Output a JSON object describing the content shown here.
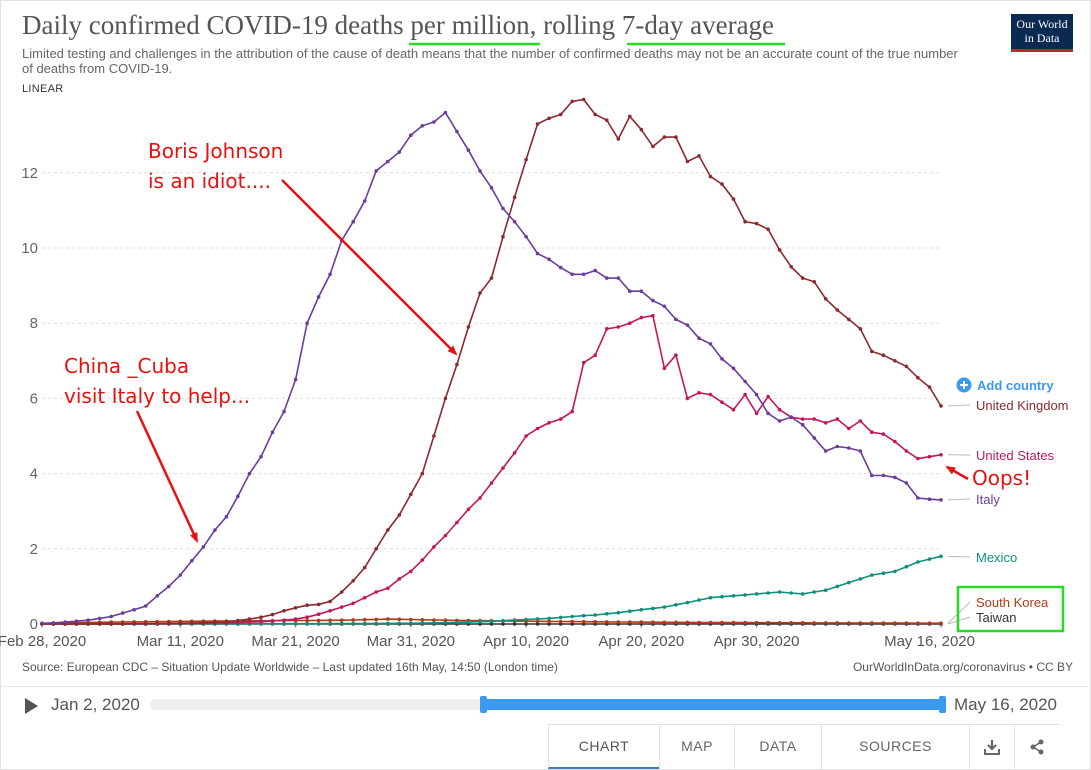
{
  "header": {
    "title": "Daily confirmed COVID-19 deaths per million, rolling 7-day average",
    "subtitle": "Limited testing and challenges in the attribution of the cause of death means that the number of confirmed deaths may not be an accurate count of the true number of deaths from COVID-19.",
    "scale_label": "LINEAR",
    "logo_line1": "Our World",
    "logo_line2": "in Data"
  },
  "add_country_label": "Add country",
  "annotations": {
    "boris": [
      "Boris Johnson",
      "is an idiot...."
    ],
    "china": [
      "China _Cuba",
      "visit Italy to help..."
    ],
    "oops": "Oops!"
  },
  "colors": {
    "United Kingdom": "#8a2a2f",
    "United States": "#c2185b",
    "Italy": "#6a3d9a",
    "Mexico": "#0f8f7e",
    "South Korea": "#b23a16",
    "Taiwan": "#333333",
    "annotation": "#e8110f",
    "highlight_underline": "#22dd22",
    "highlight_box": "#22dd22",
    "accent": "#3b9af0"
  },
  "chart_data": {
    "type": "line",
    "title": "Daily confirmed COVID-19 deaths per million, rolling 7-day average",
    "xlabel": "",
    "ylabel": "",
    "x_start": "2020-02-28",
    "x_end": "2020-05-16",
    "x_ticks": [
      "Feb 28, 2020",
      "Mar 11, 2020",
      "Mar 21, 2020",
      "Mar 31, 2020",
      "Apr 10, 2020",
      "Apr 20, 2020",
      "Apr 30, 2020",
      "May 16, 2020"
    ],
    "x_tick_dates": [
      "2020-02-28",
      "2020-03-11",
      "2020-03-21",
      "2020-03-31",
      "2020-04-10",
      "2020-04-20",
      "2020-04-30",
      "2020-05-16"
    ],
    "ylim": [
      0,
      14
    ],
    "y_ticks": [
      0,
      2,
      4,
      6,
      8,
      10,
      12
    ],
    "grid": true,
    "series": [
      {
        "name": "Italy",
        "values": [
          [
            "2020-02-28",
            0.01
          ],
          [
            "2020-03-01",
            0.05
          ],
          [
            "2020-03-03",
            0.1
          ],
          [
            "2020-03-05",
            0.2
          ],
          [
            "2020-03-07",
            0.38
          ],
          [
            "2020-03-08",
            0.48
          ],
          [
            "2020-03-09",
            0.75
          ],
          [
            "2020-03-10",
            1.0
          ],
          [
            "2020-03-11",
            1.3
          ],
          [
            "2020-03-12",
            1.68
          ],
          [
            "2020-03-13",
            2.05
          ],
          [
            "2020-03-14",
            2.5
          ],
          [
            "2020-03-15",
            2.85
          ],
          [
            "2020-03-16",
            3.4
          ],
          [
            "2020-03-17",
            4.0
          ],
          [
            "2020-03-18",
            4.45
          ],
          [
            "2020-03-19",
            5.1
          ],
          [
            "2020-03-20",
            5.65
          ],
          [
            "2020-03-21",
            6.5
          ],
          [
            "2020-03-22",
            8.0
          ],
          [
            "2020-03-23",
            8.7
          ],
          [
            "2020-03-24",
            9.3
          ],
          [
            "2020-03-25",
            10.2
          ],
          [
            "2020-03-26",
            10.7
          ],
          [
            "2020-03-27",
            11.25
          ],
          [
            "2020-03-28",
            12.05
          ],
          [
            "2020-03-29",
            12.3
          ],
          [
            "2020-03-30",
            12.55
          ],
          [
            "2020-03-31",
            13.0
          ],
          [
            "2020-04-01",
            13.25
          ],
          [
            "2020-04-02",
            13.35
          ],
          [
            "2020-04-03",
            13.6
          ],
          [
            "2020-04-04",
            13.1
          ],
          [
            "2020-04-05",
            12.6
          ],
          [
            "2020-04-06",
            12.05
          ],
          [
            "2020-04-07",
            11.6
          ],
          [
            "2020-04-08",
            11.05
          ],
          [
            "2020-04-09",
            10.7
          ],
          [
            "2020-04-10",
            10.3
          ],
          [
            "2020-04-11",
            9.85
          ],
          [
            "2020-04-12",
            9.7
          ],
          [
            "2020-04-13",
            9.48
          ],
          [
            "2020-04-14",
            9.3
          ],
          [
            "2020-04-15",
            9.3
          ],
          [
            "2020-04-16",
            9.4
          ],
          [
            "2020-04-17",
            9.2
          ],
          [
            "2020-04-18",
            9.2
          ],
          [
            "2020-04-19",
            8.85
          ],
          [
            "2020-04-20",
            8.85
          ],
          [
            "2020-04-21",
            8.6
          ],
          [
            "2020-04-22",
            8.45
          ],
          [
            "2020-04-23",
            8.1
          ],
          [
            "2020-04-24",
            7.95
          ],
          [
            "2020-04-25",
            7.6
          ],
          [
            "2020-04-26",
            7.45
          ],
          [
            "2020-04-27",
            7.05
          ],
          [
            "2020-04-28",
            6.8
          ],
          [
            "2020-04-29",
            6.45
          ],
          [
            "2020-04-30",
            6.1
          ],
          [
            "2020-05-01",
            5.6
          ],
          [
            "2020-05-02",
            5.4
          ],
          [
            "2020-05-03",
            5.5
          ],
          [
            "2020-05-04",
            5.3
          ],
          [
            "2020-05-05",
            4.95
          ],
          [
            "2020-05-06",
            4.6
          ],
          [
            "2020-05-07",
            4.72
          ],
          [
            "2020-05-08",
            4.68
          ],
          [
            "2020-05-09",
            4.6
          ],
          [
            "2020-05-10",
            3.95
          ],
          [
            "2020-05-11",
            3.95
          ],
          [
            "2020-05-12",
            3.9
          ],
          [
            "2020-05-13",
            3.75
          ],
          [
            "2020-05-14",
            3.35
          ],
          [
            "2020-05-15",
            3.32
          ],
          [
            "2020-05-16",
            3.3
          ]
        ]
      },
      {
        "name": "United Kingdom",
        "values": [
          [
            "2020-02-28",
            0.0
          ],
          [
            "2020-03-05",
            0.0
          ],
          [
            "2020-03-10",
            0.01
          ],
          [
            "2020-03-15",
            0.05
          ],
          [
            "2020-03-17",
            0.13
          ],
          [
            "2020-03-18",
            0.18
          ],
          [
            "2020-03-19",
            0.25
          ],
          [
            "2020-03-20",
            0.35
          ],
          [
            "2020-03-21",
            0.43
          ],
          [
            "2020-03-22",
            0.5
          ],
          [
            "2020-03-23",
            0.52
          ],
          [
            "2020-03-24",
            0.6
          ],
          [
            "2020-03-25",
            0.85
          ],
          [
            "2020-03-26",
            1.15
          ],
          [
            "2020-03-27",
            1.5
          ],
          [
            "2020-03-28",
            2.0
          ],
          [
            "2020-03-29",
            2.5
          ],
          [
            "2020-03-30",
            2.9
          ],
          [
            "2020-03-31",
            3.45
          ],
          [
            "2020-04-01",
            4.0
          ],
          [
            "2020-04-02",
            5.0
          ],
          [
            "2020-04-03",
            6.0
          ],
          [
            "2020-04-04",
            6.9
          ],
          [
            "2020-04-05",
            7.9
          ],
          [
            "2020-04-06",
            8.8
          ],
          [
            "2020-04-07",
            9.2
          ],
          [
            "2020-04-08",
            10.3
          ],
          [
            "2020-04-09",
            11.35
          ],
          [
            "2020-04-10",
            12.35
          ],
          [
            "2020-04-11",
            13.3
          ],
          [
            "2020-04-12",
            13.45
          ],
          [
            "2020-04-13",
            13.55
          ],
          [
            "2020-04-14",
            13.9
          ],
          [
            "2020-04-15",
            13.95
          ],
          [
            "2020-04-16",
            13.55
          ],
          [
            "2020-04-17",
            13.4
          ],
          [
            "2020-04-18",
            12.9
          ],
          [
            "2020-04-19",
            13.5
          ],
          [
            "2020-04-20",
            13.15
          ],
          [
            "2020-04-21",
            12.7
          ],
          [
            "2020-04-22",
            12.95
          ],
          [
            "2020-04-23",
            12.95
          ],
          [
            "2020-04-24",
            12.3
          ],
          [
            "2020-04-25",
            12.45
          ],
          [
            "2020-04-26",
            11.9
          ],
          [
            "2020-04-27",
            11.7
          ],
          [
            "2020-04-28",
            11.3
          ],
          [
            "2020-04-29",
            10.7
          ],
          [
            "2020-04-30",
            10.65
          ],
          [
            "2020-05-01",
            10.5
          ],
          [
            "2020-05-02",
            9.95
          ],
          [
            "2020-05-03",
            9.5
          ],
          [
            "2020-05-04",
            9.2
          ],
          [
            "2020-05-05",
            9.1
          ],
          [
            "2020-05-06",
            8.65
          ],
          [
            "2020-05-07",
            8.35
          ],
          [
            "2020-05-08",
            8.1
          ],
          [
            "2020-05-09",
            7.85
          ],
          [
            "2020-05-10",
            7.25
          ],
          [
            "2020-05-11",
            7.15
          ],
          [
            "2020-05-12",
            7.0
          ],
          [
            "2020-05-13",
            6.85
          ],
          [
            "2020-05-14",
            6.55
          ],
          [
            "2020-05-15",
            6.3
          ],
          [
            "2020-05-16",
            5.8
          ]
        ]
      },
      {
        "name": "United States",
        "values": [
          [
            "2020-02-28",
            0.0
          ],
          [
            "2020-03-10",
            0.01
          ],
          [
            "2020-03-15",
            0.03
          ],
          [
            "2020-03-18",
            0.06
          ],
          [
            "2020-03-20",
            0.1
          ],
          [
            "2020-03-21",
            0.13
          ],
          [
            "2020-03-22",
            0.18
          ],
          [
            "2020-03-23",
            0.26
          ],
          [
            "2020-03-24",
            0.35
          ],
          [
            "2020-03-25",
            0.45
          ],
          [
            "2020-03-26",
            0.55
          ],
          [
            "2020-03-27",
            0.7
          ],
          [
            "2020-03-28",
            0.85
          ],
          [
            "2020-03-29",
            0.95
          ],
          [
            "2020-03-30",
            1.2
          ],
          [
            "2020-03-31",
            1.4
          ],
          [
            "2020-04-01",
            1.7
          ],
          [
            "2020-04-02",
            2.05
          ],
          [
            "2020-04-03",
            2.35
          ],
          [
            "2020-04-04",
            2.7
          ],
          [
            "2020-04-05",
            3.05
          ],
          [
            "2020-04-06",
            3.35
          ],
          [
            "2020-04-07",
            3.75
          ],
          [
            "2020-04-08",
            4.15
          ],
          [
            "2020-04-09",
            4.55
          ],
          [
            "2020-04-10",
            5.0
          ],
          [
            "2020-04-11",
            5.2
          ],
          [
            "2020-04-12",
            5.35
          ],
          [
            "2020-04-13",
            5.45
          ],
          [
            "2020-04-14",
            5.65
          ],
          [
            "2020-04-15",
            6.95
          ],
          [
            "2020-04-16",
            7.15
          ],
          [
            "2020-04-17",
            7.85
          ],
          [
            "2020-04-18",
            7.9
          ],
          [
            "2020-04-19",
            8.0
          ],
          [
            "2020-04-20",
            8.15
          ],
          [
            "2020-04-21",
            8.2
          ],
          [
            "2020-04-22",
            6.8
          ],
          [
            "2020-04-23",
            7.15
          ],
          [
            "2020-04-24",
            6.0
          ],
          [
            "2020-04-25",
            6.15
          ],
          [
            "2020-04-26",
            6.1
          ],
          [
            "2020-04-27",
            5.9
          ],
          [
            "2020-04-28",
            5.7
          ],
          [
            "2020-04-29",
            6.1
          ],
          [
            "2020-04-30",
            5.6
          ],
          [
            "2020-05-01",
            6.05
          ],
          [
            "2020-05-02",
            5.7
          ],
          [
            "2020-05-03",
            5.5
          ],
          [
            "2020-05-04",
            5.45
          ],
          [
            "2020-05-05",
            5.45
          ],
          [
            "2020-05-06",
            5.35
          ],
          [
            "2020-05-07",
            5.45
          ],
          [
            "2020-05-08",
            5.2
          ],
          [
            "2020-05-09",
            5.4
          ],
          [
            "2020-05-10",
            5.1
          ],
          [
            "2020-05-11",
            5.05
          ],
          [
            "2020-05-12",
            4.85
          ],
          [
            "2020-05-13",
            4.6
          ],
          [
            "2020-05-14",
            4.4
          ],
          [
            "2020-05-15",
            4.45
          ],
          [
            "2020-05-16",
            4.5
          ]
        ]
      },
      {
        "name": "Mexico",
        "values": [
          [
            "2020-02-28",
            0.0
          ],
          [
            "2020-03-25",
            0.01
          ],
          [
            "2020-03-31",
            0.02
          ],
          [
            "2020-04-04",
            0.04
          ],
          [
            "2020-04-07",
            0.07
          ],
          [
            "2020-04-10",
            0.12
          ],
          [
            "2020-04-12",
            0.15
          ],
          [
            "2020-04-14",
            0.2
          ],
          [
            "2020-04-16",
            0.24
          ],
          [
            "2020-04-18",
            0.3
          ],
          [
            "2020-04-20",
            0.38
          ],
          [
            "2020-04-22",
            0.45
          ],
          [
            "2020-04-24",
            0.57
          ],
          [
            "2020-04-26",
            0.7
          ],
          [
            "2020-04-28",
            0.75
          ],
          [
            "2020-04-30",
            0.8
          ],
          [
            "2020-05-02",
            0.85
          ],
          [
            "2020-05-04",
            0.8
          ],
          [
            "2020-05-06",
            0.9
          ],
          [
            "2020-05-08",
            1.1
          ],
          [
            "2020-05-10",
            1.3
          ],
          [
            "2020-05-12",
            1.4
          ],
          [
            "2020-05-14",
            1.65
          ],
          [
            "2020-05-16",
            1.8
          ]
        ]
      },
      {
        "name": "South Korea",
        "values": [
          [
            "2020-02-28",
            0.02
          ],
          [
            "2020-03-05",
            0.05
          ],
          [
            "2020-03-15",
            0.08
          ],
          [
            "2020-03-25",
            0.1
          ],
          [
            "2020-03-29",
            0.13
          ],
          [
            "2020-04-05",
            0.09
          ],
          [
            "2020-04-15",
            0.06
          ],
          [
            "2020-04-25",
            0.04
          ],
          [
            "2020-05-05",
            0.03
          ],
          [
            "2020-05-16",
            0.02
          ]
        ]
      },
      {
        "name": "Taiwan",
        "values": [
          [
            "2020-02-28",
            0.0
          ],
          [
            "2020-03-20",
            0.0
          ],
          [
            "2020-04-10",
            0.0
          ],
          [
            "2020-04-30",
            0.0
          ],
          [
            "2020-05-16",
            0.0
          ]
        ]
      }
    ]
  },
  "footer": {
    "source": "Source: European CDC – Situation Update Worldwide – Last updated 16th May, 14:50 (London time)",
    "site": "OurWorldInData.org/coronavirus • CC BY"
  },
  "timeline": {
    "start_label": "Jan 2, 2020",
    "end_label": "May 16, 2020",
    "selected_start_fraction": 0.42
  },
  "tabs": [
    "CHART",
    "MAP",
    "DATA",
    "SOURCES"
  ],
  "tab_icons": [
    "download-icon",
    "share-icon"
  ]
}
